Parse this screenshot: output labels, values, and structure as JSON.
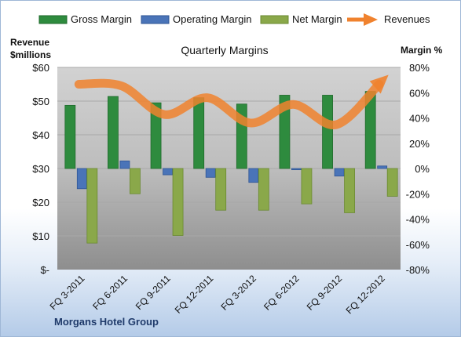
{
  "chart_data": {
    "type": "bar",
    "title": "Quarterly Margins",
    "company": "Morgans Hotel Group",
    "left_axis": {
      "label_line1": "Revenue",
      "label_line2": "$millions",
      "range": [
        0,
        60
      ],
      "ticks": [
        "$-",
        "$10",
        "$20",
        "$30",
        "$40",
        "$50",
        "$60"
      ]
    },
    "right_axis": {
      "label": "Margin %",
      "range": [
        -80,
        80
      ],
      "ticks": [
        "-80%",
        "-60%",
        "-40%",
        "-20%",
        "0%",
        "20%",
        "40%",
        "60%",
        "80%"
      ]
    },
    "categories": [
      "FQ 3-2011",
      "FQ 6-2011",
      "FQ 9-2011",
      "FQ 12-2011",
      "FQ 3-2012",
      "FQ 6-2012",
      "FQ 9-2012",
      "FQ 12-2012"
    ],
    "series": [
      {
        "name": "Gross Margin",
        "type": "bar",
        "axis": "right",
        "color": "#2e8b3e",
        "values": [
          50,
          57,
          52,
          56,
          51,
          58,
          58,
          61
        ]
      },
      {
        "name": "Operating Margin",
        "type": "bar",
        "axis": "right",
        "color": "#4a74b8",
        "values": [
          -16,
          6,
          -5,
          -7,
          -11,
          -1,
          -6,
          2
        ]
      },
      {
        "name": "Net Margin",
        "type": "bar",
        "axis": "right",
        "color": "#8aa84a",
        "values": [
          -59,
          -20,
          -53,
          -33,
          -33,
          -28,
          -35,
          -22
        ]
      },
      {
        "name": "Revenues",
        "type": "line",
        "axis": "left",
        "color": "#f0822e",
        "values": [
          55,
          54.5,
          46,
          51,
          43.5,
          49,
          43,
          55
        ]
      }
    ],
    "legend_position": "top",
    "grid": true
  }
}
